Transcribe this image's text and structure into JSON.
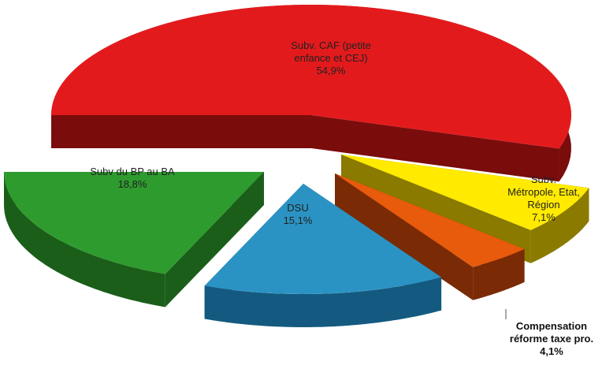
{
  "chart_data": {
    "type": "pie",
    "style": "3d-exploded",
    "slices": [
      {
        "name": "Subv. CAF (petite enfance et CEJ)",
        "value": 54.9,
        "label": "54,9%",
        "color": "#e31a1c",
        "dark": "#7a0c0c"
      },
      {
        "name": "Subv. Métropole, Etat, Région",
        "value": 7.1,
        "label": "7,1%",
        "color": "#ffea00",
        "dark": "#8a7a00"
      },
      {
        "name": "Compensation réforme taxe pro.",
        "value": 4.1,
        "label": "4,1%",
        "color": "#e85a0c",
        "dark": "#7a2a05"
      },
      {
        "name": "DSU",
        "value": 15.1,
        "label": "15,1%",
        "color": "#2b93c3",
        "dark": "#145a80"
      },
      {
        "name": "Subv du BP au BA",
        "value": 18.8,
        "label": "18,8%",
        "color": "#2e9b2e",
        "dark": "#1a5e1a"
      }
    ]
  }
}
